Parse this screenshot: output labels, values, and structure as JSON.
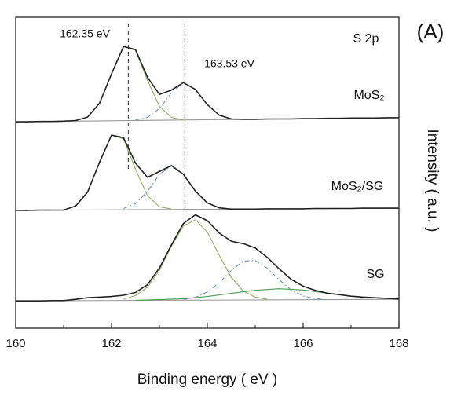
{
  "chart_data": {
    "type": "line",
    "title": "(A)",
    "xlabel": "Binding energy ( eV )",
    "ylabel": "Intensity ( a.u. )",
    "xlim": [
      160,
      168
    ],
    "xticks": [
      160,
      162,
      164,
      166,
      168
    ],
    "ylim": [
      0,
      100
    ],
    "annotations": [
      "S 2p",
      "MoS₂",
      "MoS₂/SG",
      "SG"
    ],
    "vlines": [
      {
        "value": 162.35,
        "label": "162.35 eV"
      },
      {
        "value": 163.53,
        "label": "163.53 eV"
      }
    ],
    "series": [
      {
        "color": "#999999",
        "style": "solid",
        "x": [
          160,
          168
        ],
        "values": [
          66.4,
          67.7
        ]
      },
      {
        "color": "#999999",
        "style": "solid",
        "x": [
          160,
          168
        ],
        "values": [
          37.9,
          38.6
        ]
      },
      {
        "color": "#999999",
        "style": "solid",
        "x": [
          160,
          168
        ],
        "values": [
          8.8,
          9.3
        ]
      },
      {
        "color": "#8fae6a",
        "style": "solid",
        "x": [
          161.25,
          161.5,
          161.75,
          162,
          162.25,
          162.5,
          162.75,
          163,
          163.25,
          163.5
        ],
        "values": [
          66.8,
          67.9,
          72.4,
          81.8,
          90.6,
          89.4,
          79.7,
          71.4,
          67.8,
          67.0
        ]
      },
      {
        "color": "#6d8fc7",
        "style": "dashdot",
        "x": [
          162.5,
          162.75,
          163,
          163.25,
          163.5,
          163.75,
          164,
          164.25,
          164.5
        ],
        "values": [
          67.0,
          67.8,
          70.7,
          75.7,
          79.0,
          76.8,
          71.9,
          68.5,
          67.3
        ]
      },
      {
        "color": "#8fae6a",
        "style": "solid",
        "x": [
          161.25,
          161.5,
          161.75,
          162,
          162.25,
          162.5,
          162.75,
          163,
          163.25
        ],
        "values": [
          39.3,
          43.8,
          53.4,
          62.1,
          60.9,
          51.1,
          42.6,
          39.1,
          38.3
        ]
      },
      {
        "color": "#6d8fc7",
        "style": "dashdot",
        "x": [
          162.25,
          162.5,
          162.75,
          163,
          163.25,
          163.5,
          163.75,
          164,
          164.25
        ],
        "values": [
          38.5,
          40.1,
          44.0,
          49.5,
          52.2,
          49.5,
          44.1,
          40.3,
          38.7
        ]
      },
      {
        "color": "#8fae6a",
        "style": "solid",
        "x": [
          162.25,
          162.5,
          162.75,
          163,
          163.25,
          163.5,
          163.75,
          164,
          164.25,
          164.5,
          164.75,
          165,
          165.25
        ],
        "values": [
          9.3,
          10.5,
          13.2,
          18.6,
          26.4,
          32.9,
          34.9,
          30.9,
          23.4,
          16.4,
          12.0,
          10.0,
          9.3
        ]
      },
      {
        "color": "#6d8fc7",
        "style": "dashdot",
        "x": [
          163.5,
          163.75,
          164,
          164.25,
          164.5,
          164.75,
          165,
          165.25,
          165.5,
          165.75,
          166,
          166.25,
          166.5
        ],
        "values": [
          9.3,
          9.9,
          11.7,
          14.7,
          18.6,
          21.6,
          21.8,
          19.3,
          15.6,
          12.3,
          10.4,
          9.5,
          9.2
        ]
      },
      {
        "color": "#4f9a55",
        "style": "solid",
        "x": [
          162.5,
          163,
          163.5,
          164,
          164.5,
          165,
          165.5,
          166,
          166.5,
          167,
          167.5,
          168
        ],
        "values": [
          9.0,
          9.2,
          9.5,
          10.2,
          11.2,
          12.2,
          12.7,
          12.3,
          11.3,
          10.3,
          9.8,
          9.5
        ]
      },
      {
        "color": "#222222",
        "style": "solid",
        "x": [
          160,
          160.25,
          160.5,
          160.75,
          161,
          161.25,
          161.5,
          161.75,
          162,
          162.25,
          162.5,
          162.75,
          163,
          163.25,
          163.5,
          163.75,
          164,
          164.25,
          164.5,
          164.75,
          165,
          165.25,
          165.5,
          165.75,
          166,
          166.25,
          166.5,
          166.75,
          167,
          167.25,
          167.5,
          167.75,
          168
        ],
        "values": [
          66.4,
          66.4,
          66.5,
          66.5,
          66.6,
          66.8,
          67.9,
          72.4,
          81.8,
          90.6,
          89.6,
          80.7,
          75.2,
          76.6,
          79.0,
          76.8,
          71.9,
          68.5,
          67.3,
          67.2,
          67.2,
          67.3,
          67.3,
          67.3,
          67.4,
          67.4,
          67.5,
          67.5,
          67.6,
          67.6,
          67.6,
          67.7,
          67.7
        ]
      },
      {
        "color": "#222222",
        "style": "solid",
        "x": [
          160,
          160.25,
          160.5,
          160.75,
          161,
          161.25,
          161.5,
          161.75,
          162,
          162.25,
          162.5,
          162.75,
          163,
          163.25,
          163.5,
          163.75,
          164,
          164.25,
          164.5,
          164.75,
          165,
          165.25,
          165.5,
          165.75,
          166,
          166.25,
          166.5,
          166.75,
          167,
          167.25,
          167.5,
          167.75,
          168
        ],
        "values": [
          37.9,
          37.9,
          38.0,
          38.0,
          38.0,
          39.3,
          43.8,
          53.4,
          62.1,
          61.3,
          53.1,
          48.5,
          50.4,
          52.3,
          49.5,
          44.1,
          40.3,
          38.7,
          38.3,
          38.3,
          38.3,
          38.4,
          38.4,
          38.4,
          38.4,
          38.5,
          38.5,
          38.5,
          38.5,
          38.6,
          38.6,
          38.6,
          38.6
        ]
      },
      {
        "color": "#222222",
        "style": "solid",
        "x": [
          160,
          160.25,
          160.5,
          160.75,
          161,
          161.25,
          161.5,
          161.75,
          162,
          162.25,
          162.5,
          162.75,
          163,
          163.25,
          163.5,
          163.75,
          164,
          164.25,
          164.5,
          164.75,
          165,
          165.25,
          165.5,
          165.75,
          166,
          166.25,
          166.5,
          166.75,
          167,
          167.25,
          167.5,
          167.75,
          168
        ],
        "values": [
          8.8,
          8.8,
          8.8,
          8.9,
          8.9,
          9.3,
          9.8,
          10.0,
          10.2,
          10.6,
          11.5,
          14.0,
          19.4,
          26.8,
          33.7,
          36.5,
          34.6,
          30.6,
          28.0,
          27.2,
          25.8,
          22.8,
          19.1,
          15.7,
          13.5,
          12.2,
          11.3,
          10.8,
          10.3,
          10.0,
          9.8,
          9.6,
          9.4
        ]
      }
    ]
  }
}
